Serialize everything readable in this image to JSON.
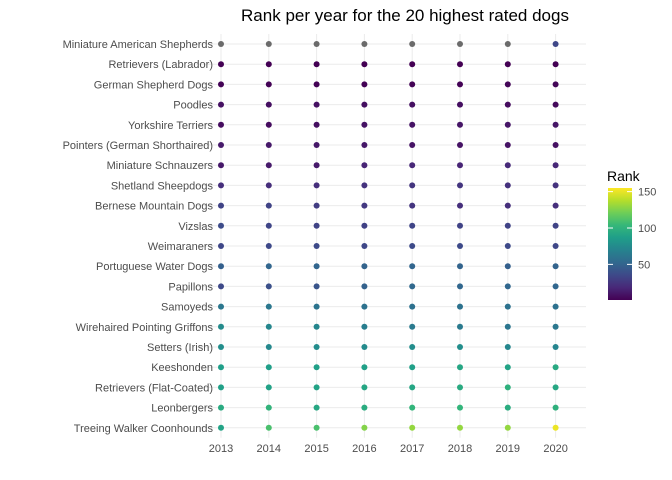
{
  "chart_data": {
    "type": "scatter",
    "title": "Rank per year for the 20 highest rated dogs",
    "xlabel": "",
    "ylabel": "",
    "x": [
      2013,
      2014,
      2015,
      2016,
      2017,
      2018,
      2019,
      2020
    ],
    "x_tick_labels": [
      "2013",
      "2014",
      "2015",
      "2016",
      "2017",
      "2018",
      "2019",
      "2020"
    ],
    "categories": [
      "Miniature American Shepherds",
      "Retrievers (Labrador)",
      "German Shepherd Dogs",
      "Poodles",
      "Yorkshire Terriers",
      "Pointers (German Shorthaired)",
      "Miniature Schnauzers",
      "Shetland Sheepdogs",
      "Bernese Mountain Dogs",
      "Vizslas",
      "Weimaraners",
      "Portuguese Water Dogs",
      "Papillons",
      "Samoyeds",
      "Wirehaired Pointing Griffons",
      "Setters (Irish)",
      "Keeshonden",
      "Retrievers (Flat-Coated)",
      "Leonbergers",
      "Treeing Walker Coonhounds"
    ],
    "na_color": "#6b6b6b",
    "series": [
      {
        "name": "Miniature American Shepherds",
        "values": [
          null,
          null,
          null,
          null,
          null,
          null,
          null,
          34
        ]
      },
      {
        "name": "Retrievers (Labrador)",
        "values": [
          1,
          1,
          1,
          1,
          1,
          1,
          1,
          1
        ]
      },
      {
        "name": "German Shepherd Dogs",
        "values": [
          2,
          2,
          2,
          2,
          2,
          2,
          3,
          3
        ]
      },
      {
        "name": "Poodles",
        "values": [
          8,
          7,
          8,
          7,
          7,
          7,
          6,
          5
        ]
      },
      {
        "name": "Yorkshire Terriers",
        "values": [
          6,
          6,
          7,
          9,
          9,
          10,
          10,
          10
        ]
      },
      {
        "name": "Pointers (German Shorthaired)",
        "values": [
          12,
          11,
          11,
          11,
          9,
          9,
          9,
          8
        ]
      },
      {
        "name": "Miniature Schnauzers",
        "values": [
          11,
          12,
          12,
          17,
          18,
          17,
          19,
          18
        ]
      },
      {
        "name": "Shetland Sheepdogs",
        "values": [
          22,
          21,
          22,
          24,
          25,
          25,
          23,
          24
        ]
      },
      {
        "name": "Bernese Mountain Dogs",
        "values": [
          32,
          32,
          29,
          27,
          25,
          22,
          22,
          22
        ]
      },
      {
        "name": "Vizslas",
        "values": [
          37,
          33,
          32,
          31,
          33,
          32,
          32,
          32
        ]
      },
      {
        "name": "Weimaraners",
        "values": [
          34,
          35,
          36,
          34,
          36,
          36,
          35,
          34
        ]
      },
      {
        "name": "Portuguese Water Dogs",
        "values": [
          48,
          51,
          51,
          50,
          51,
          50,
          48,
          50
        ]
      },
      {
        "name": "Papillons",
        "values": [
          35,
          39,
          42,
          49,
          53,
          52,
          52,
          52
        ]
      },
      {
        "name": "Samoyeds",
        "values": [
          62,
          62,
          60,
          59,
          58,
          59,
          59,
          58
        ]
      },
      {
        "name": "Wirehaired Pointing Griffons",
        "values": [
          75,
          72,
          72,
          66,
          64,
          64,
          61,
          62
        ]
      },
      {
        "name": "Setters (Irish)",
        "values": [
          77,
          73,
          76,
          75,
          76,
          77,
          72,
          71
        ]
      },
      {
        "name": "Keeshonden",
        "values": [
          87,
          87,
          88,
          88,
          88,
          92,
          90,
          94
        ]
      },
      {
        "name": "Retrievers (Flat-Coated)",
        "values": [
          88,
          89,
          90,
          92,
          92,
          95,
          99,
          93
        ]
      },
      {
        "name": "Leonbergers",
        "values": [
          95,
          101,
          93,
          96,
          102,
          102,
          96,
          99
        ]
      },
      {
        "name": "Treeing Walker Coonhounds",
        "values": [
          90,
          110,
          110,
          126,
          130,
          130,
          130,
          151
        ]
      }
    ],
    "legend": {
      "title": "Rank",
      "ticks": [
        50,
        100,
        150
      ],
      "position": "right",
      "range": [
        1,
        155
      ],
      "colors": [
        "#440154",
        "#482878",
        "#3e4989",
        "#31688e",
        "#26828e",
        "#1f9e89",
        "#35b779",
        "#6ece58",
        "#b5de2b",
        "#fde725"
      ]
    },
    "grid": true
  }
}
